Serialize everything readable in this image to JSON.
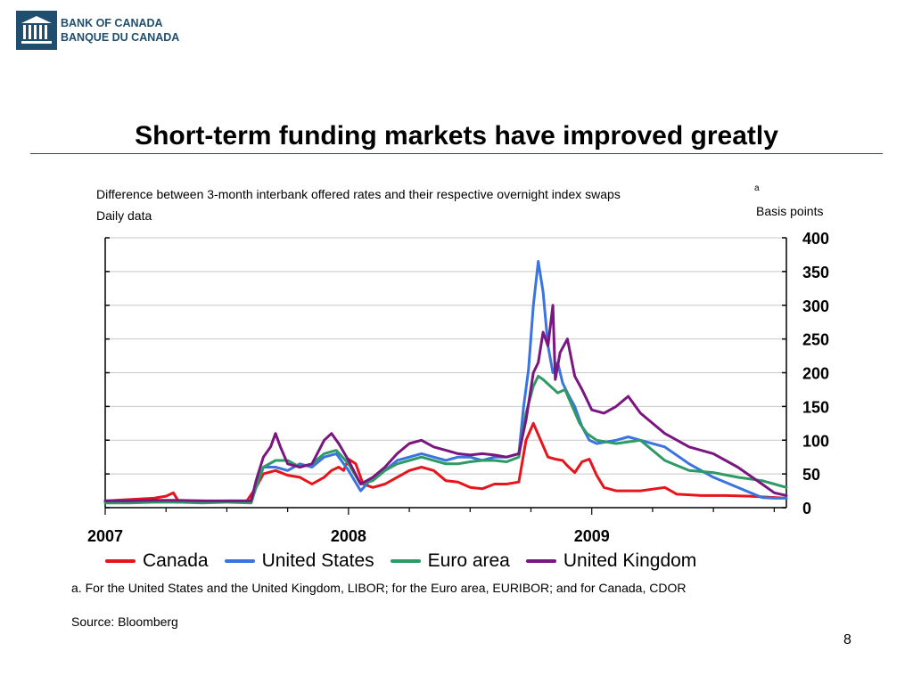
{
  "header": {
    "logo_line1": "BANK OF CANADA",
    "logo_line2": "BANQUE DU CANADA"
  },
  "slide": {
    "title": "Short-term funding markets have improved greatly",
    "page_number": "8"
  },
  "chart_meta": {
    "subtitle": "Difference between 3-month interbank offered rates and their respective overnight index swaps",
    "subtitle_note": "a",
    "frequency": "Daily data",
    "units": "Basis points",
    "footnote": "a. For the United States and the United Kingdom, LIBOR; for the Euro area, EURIBOR; and for Canada, CDOR",
    "source": "Source: Bloomberg"
  },
  "colors": {
    "canada": "#e8141c",
    "united_states": "#3a74e0",
    "euro_area": "#2e9a66",
    "united_kingdom": "#7a1680",
    "accent": "#1f4e6e"
  },
  "chart_data": {
    "type": "line",
    "title": "",
    "xlabel": "",
    "ylabel": "Basis points",
    "xlim": [
      2007.0,
      2009.8
    ],
    "ylim": [
      0,
      400
    ],
    "yticks": [
      0,
      50,
      100,
      150,
      200,
      250,
      300,
      350,
      400
    ],
    "ytick_labels": [
      "0",
      "50",
      "100",
      "150",
      "200",
      "250",
      "300",
      "350",
      "400"
    ],
    "xticks": [
      2007,
      2008,
      2009
    ],
    "xtick_labels": [
      "2007",
      "2008",
      "2009"
    ],
    "grid": true,
    "legend_position": "bottom",
    "series": [
      {
        "name": "Canada",
        "color_key": "canada",
        "points": [
          [
            2007.0,
            10
          ],
          [
            2007.1,
            12
          ],
          [
            2007.2,
            14
          ],
          [
            2007.25,
            17
          ],
          [
            2007.28,
            22
          ],
          [
            2007.3,
            10
          ],
          [
            2007.4,
            10
          ],
          [
            2007.5,
            9
          ],
          [
            2007.58,
            9
          ],
          [
            2007.62,
            30
          ],
          [
            2007.65,
            50
          ],
          [
            2007.7,
            55
          ],
          [
            2007.75,
            48
          ],
          [
            2007.8,
            45
          ],
          [
            2007.85,
            35
          ],
          [
            2007.9,
            45
          ],
          [
            2007.93,
            55
          ],
          [
            2007.96,
            60
          ],
          [
            2007.98,
            55
          ],
          [
            2008.0,
            72
          ],
          [
            2008.03,
            65
          ],
          [
            2008.06,
            35
          ],
          [
            2008.1,
            30
          ],
          [
            2008.15,
            35
          ],
          [
            2008.2,
            45
          ],
          [
            2008.25,
            55
          ],
          [
            2008.3,
            60
          ],
          [
            2008.35,
            55
          ],
          [
            2008.4,
            40
          ],
          [
            2008.45,
            38
          ],
          [
            2008.5,
            30
          ],
          [
            2008.55,
            28
          ],
          [
            2008.6,
            35
          ],
          [
            2008.65,
            35
          ],
          [
            2008.7,
            38
          ],
          [
            2008.73,
            100
          ],
          [
            2008.76,
            125
          ],
          [
            2008.79,
            100
          ],
          [
            2008.82,
            75
          ],
          [
            2008.85,
            72
          ],
          [
            2008.88,
            70
          ],
          [
            2008.9,
            62
          ],
          [
            2008.93,
            52
          ],
          [
            2008.96,
            68
          ],
          [
            2008.99,
            72
          ],
          [
            2009.02,
            48
          ],
          [
            2009.05,
            30
          ],
          [
            2009.1,
            25
          ],
          [
            2009.2,
            25
          ],
          [
            2009.3,
            30
          ],
          [
            2009.35,
            20
          ],
          [
            2009.45,
            18
          ],
          [
            2009.55,
            18
          ],
          [
            2009.65,
            17
          ],
          [
            2009.75,
            15
          ],
          [
            2009.8,
            14
          ]
        ]
      },
      {
        "name": "United States",
        "color_key": "united_states",
        "points": [
          [
            2007.0,
            10
          ],
          [
            2007.1,
            10
          ],
          [
            2007.2,
            10
          ],
          [
            2007.3,
            8
          ],
          [
            2007.4,
            9
          ],
          [
            2007.5,
            10
          ],
          [
            2007.6,
            10
          ],
          [
            2007.62,
            30
          ],
          [
            2007.65,
            60
          ],
          [
            2007.7,
            60
          ],
          [
            2007.75,
            55
          ],
          [
            2007.8,
            65
          ],
          [
            2007.85,
            60
          ],
          [
            2007.9,
            75
          ],
          [
            2007.95,
            80
          ],
          [
            2008.0,
            55
          ],
          [
            2008.05,
            25
          ],
          [
            2008.1,
            45
          ],
          [
            2008.15,
            55
          ],
          [
            2008.2,
            70
          ],
          [
            2008.25,
            75
          ],
          [
            2008.3,
            80
          ],
          [
            2008.35,
            75
          ],
          [
            2008.4,
            70
          ],
          [
            2008.45,
            75
          ],
          [
            2008.5,
            75
          ],
          [
            2008.55,
            70
          ],
          [
            2008.6,
            75
          ],
          [
            2008.65,
            75
          ],
          [
            2008.7,
            80
          ],
          [
            2008.72,
            150
          ],
          [
            2008.74,
            205
          ],
          [
            2008.76,
            300
          ],
          [
            2008.78,
            365
          ],
          [
            2008.8,
            320
          ],
          [
            2008.82,
            240
          ],
          [
            2008.84,
            200
          ],
          [
            2008.86,
            215
          ],
          [
            2008.88,
            185
          ],
          [
            2008.9,
            170
          ],
          [
            2008.93,
            150
          ],
          [
            2008.96,
            120
          ],
          [
            2008.99,
            100
          ],
          [
            2009.02,
            95
          ],
          [
            2009.1,
            100
          ],
          [
            2009.15,
            105
          ],
          [
            2009.2,
            100
          ],
          [
            2009.3,
            90
          ],
          [
            2009.4,
            65
          ],
          [
            2009.5,
            45
          ],
          [
            2009.6,
            30
          ],
          [
            2009.7,
            15
          ],
          [
            2009.75,
            14
          ],
          [
            2009.8,
            14
          ]
        ]
      },
      {
        "name": "Euro area",
        "color_key": "euro_area",
        "points": [
          [
            2007.0,
            7
          ],
          [
            2007.1,
            7
          ],
          [
            2007.2,
            8
          ],
          [
            2007.3,
            8
          ],
          [
            2007.4,
            7
          ],
          [
            2007.5,
            8
          ],
          [
            2007.6,
            7
          ],
          [
            2007.62,
            30
          ],
          [
            2007.65,
            60
          ],
          [
            2007.7,
            70
          ],
          [
            2007.75,
            70
          ],
          [
            2007.8,
            60
          ],
          [
            2007.85,
            65
          ],
          [
            2007.9,
            80
          ],
          [
            2007.95,
            85
          ],
          [
            2008.0,
            65
          ],
          [
            2008.05,
            35
          ],
          [
            2008.1,
            40
          ],
          [
            2008.15,
            55
          ],
          [
            2008.2,
            65
          ],
          [
            2008.25,
            70
          ],
          [
            2008.3,
            75
          ],
          [
            2008.35,
            70
          ],
          [
            2008.4,
            65
          ],
          [
            2008.45,
            65
          ],
          [
            2008.5,
            68
          ],
          [
            2008.55,
            70
          ],
          [
            2008.6,
            70
          ],
          [
            2008.65,
            68
          ],
          [
            2008.7,
            75
          ],
          [
            2008.73,
            140
          ],
          [
            2008.76,
            180
          ],
          [
            2008.78,
            195
          ],
          [
            2008.8,
            190
          ],
          [
            2008.83,
            180
          ],
          [
            2008.86,
            170
          ],
          [
            2008.89,
            175
          ],
          [
            2008.92,
            150
          ],
          [
            2008.95,
            125
          ],
          [
            2008.98,
            110
          ],
          [
            2009.02,
            100
          ],
          [
            2009.1,
            95
          ],
          [
            2009.2,
            100
          ],
          [
            2009.3,
            70
          ],
          [
            2009.4,
            55
          ],
          [
            2009.5,
            52
          ],
          [
            2009.6,
            45
          ],
          [
            2009.7,
            40
          ],
          [
            2009.75,
            35
          ],
          [
            2009.8,
            30
          ]
        ]
      },
      {
        "name": "United Kingdom",
        "color_key": "united_kingdom",
        "points": [
          [
            2007.0,
            10
          ],
          [
            2007.1,
            10
          ],
          [
            2007.2,
            11
          ],
          [
            2007.3,
            11
          ],
          [
            2007.4,
            10
          ],
          [
            2007.5,
            10
          ],
          [
            2007.6,
            10
          ],
          [
            2007.62,
            40
          ],
          [
            2007.65,
            75
          ],
          [
            2007.68,
            90
          ],
          [
            2007.7,
            110
          ],
          [
            2007.72,
            90
          ],
          [
            2007.75,
            65
          ],
          [
            2007.8,
            60
          ],
          [
            2007.85,
            65
          ],
          [
            2007.9,
            100
          ],
          [
            2007.93,
            110
          ],
          [
            2007.96,
            95
          ],
          [
            2008.0,
            70
          ],
          [
            2008.05,
            35
          ],
          [
            2008.1,
            45
          ],
          [
            2008.15,
            60
          ],
          [
            2008.2,
            80
          ],
          [
            2008.25,
            95
          ],
          [
            2008.3,
            100
          ],
          [
            2008.35,
            90
          ],
          [
            2008.4,
            85
          ],
          [
            2008.45,
            80
          ],
          [
            2008.5,
            78
          ],
          [
            2008.55,
            80
          ],
          [
            2008.6,
            78
          ],
          [
            2008.65,
            75
          ],
          [
            2008.7,
            80
          ],
          [
            2008.73,
            130
          ],
          [
            2008.76,
            200
          ],
          [
            2008.78,
            215
          ],
          [
            2008.8,
            260
          ],
          [
            2008.82,
            240
          ],
          [
            2008.84,
            300
          ],
          [
            2008.85,
            190
          ],
          [
            2008.87,
            230
          ],
          [
            2008.9,
            250
          ],
          [
            2008.93,
            195
          ],
          [
            2008.96,
            175
          ],
          [
            2009.0,
            145
          ],
          [
            2009.05,
            140
          ],
          [
            2009.1,
            150
          ],
          [
            2009.15,
            165
          ],
          [
            2009.2,
            140
          ],
          [
            2009.3,
            110
          ],
          [
            2009.4,
            90
          ],
          [
            2009.5,
            80
          ],
          [
            2009.6,
            60
          ],
          [
            2009.7,
            35
          ],
          [
            2009.75,
            22
          ],
          [
            2009.8,
            18
          ]
        ]
      }
    ]
  },
  "legend": {
    "items": [
      "Canada",
      "United States",
      "Euro area",
      "United Kingdom"
    ]
  }
}
